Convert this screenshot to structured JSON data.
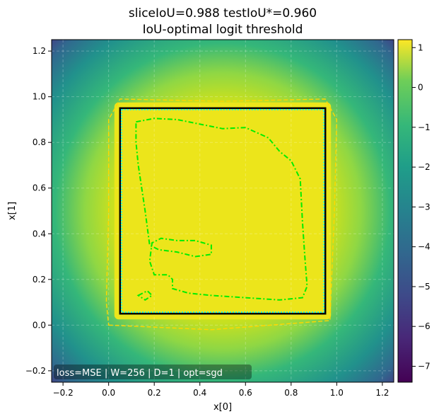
{
  "chart_data": {
    "type": "heatmap",
    "title_line1": "sliceIoU=0.988  testIoU*=0.960",
    "title_line2": "IoU-optimal logit threshold",
    "xlabel": "x[0]",
    "ylabel": "x[1]",
    "xlim": [
      -0.25,
      1.25
    ],
    "ylim": [
      -0.25,
      1.25
    ],
    "xticks": [
      -0.2,
      0.0,
      0.2,
      0.4,
      0.6,
      0.8,
      1.0,
      1.2
    ],
    "xtick_labels": [
      "−0.2",
      "0.0",
      "0.2",
      "0.4",
      "0.6",
      "0.8",
      "1.0",
      "1.2"
    ],
    "yticks": [
      -0.2,
      0.0,
      0.2,
      0.4,
      0.6,
      0.8,
      1.0,
      1.2
    ],
    "ytick_labels": [
      "−0.2",
      "0.0",
      "0.2",
      "0.4",
      "0.6",
      "0.8",
      "1.0",
      "1.2"
    ],
    "grid": true,
    "colormap": "viridis",
    "colorbar_range": [
      -7.4,
      1.2
    ],
    "colorbar_ticks": [
      1,
      0,
      -1,
      -2,
      -3,
      -4,
      -5,
      -6,
      -7
    ],
    "colorbar_tick_labels": [
      "1",
      "0",
      "−1",
      "−2",
      "−3",
      "−4",
      "−5",
      "−6",
      "−7"
    ],
    "true_square": {
      "x0": 0.05,
      "x1": 0.95,
      "y0": 0.05,
      "y1": 0.95,
      "color": "#000000"
    },
    "predicted_boundary_color": "#00ffff",
    "yellow_contour": [
      [
        0.0,
        0.0
      ],
      [
        0.45,
        -0.02
      ],
      [
        0.97,
        0.02
      ],
      [
        0.99,
        0.5
      ],
      [
        1.0,
        0.9
      ],
      [
        0.95,
        0.99
      ],
      [
        0.5,
        0.98
      ],
      [
        0.05,
        0.99
      ],
      [
        0.0,
        0.9
      ],
      [
        0.0,
        0.5
      ],
      [
        -0.01,
        0.1
      ]
    ],
    "yellow_contour_color": "#ffd700",
    "green_contour": [
      [
        0.12,
        0.89
      ],
      [
        0.2,
        0.905
      ],
      [
        0.3,
        0.9
      ],
      [
        0.4,
        0.88
      ],
      [
        0.5,
        0.86
      ],
      [
        0.6,
        0.865
      ],
      [
        0.7,
        0.82
      ],
      [
        0.75,
        0.76
      ],
      [
        0.8,
        0.72
      ],
      [
        0.84,
        0.64
      ],
      [
        0.85,
        0.45
      ],
      [
        0.86,
        0.3
      ],
      [
        0.87,
        0.17
      ],
      [
        0.85,
        0.12
      ],
      [
        0.75,
        0.11
      ],
      [
        0.6,
        0.12
      ],
      [
        0.45,
        0.13
      ],
      [
        0.35,
        0.14
      ],
      [
        0.28,
        0.16
      ],
      [
        0.28,
        0.2
      ],
      [
        0.26,
        0.22
      ],
      [
        0.2,
        0.22
      ],
      [
        0.18,
        0.28
      ],
      [
        0.19,
        0.36
      ],
      [
        0.23,
        0.38
      ],
      [
        0.3,
        0.37
      ],
      [
        0.38,
        0.37
      ],
      [
        0.45,
        0.35
      ],
      [
        0.45,
        0.31
      ],
      [
        0.38,
        0.3
      ],
      [
        0.3,
        0.32
      ],
      [
        0.22,
        0.33
      ],
      [
        0.18,
        0.35
      ],
      [
        0.16,
        0.5
      ],
      [
        0.13,
        0.7
      ],
      [
        0.12,
        0.8
      ],
      [
        0.12,
        0.89
      ]
    ],
    "green_blob": [
      [
        0.13,
        0.13
      ],
      [
        0.17,
        0.15
      ],
      [
        0.19,
        0.13
      ],
      [
        0.16,
        0.11
      ],
      [
        0.13,
        0.13
      ]
    ],
    "green_contour_color": "#00ee00",
    "annotation": "loss=MSE | W=256 | D=1 | opt=sgd"
  }
}
